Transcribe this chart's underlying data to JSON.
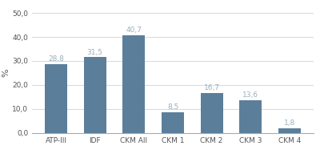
{
  "categories": [
    "ATP-III",
    "IDF",
    "CKM All",
    "CKM 1",
    "CKM 2",
    "CKM 3",
    "CKM 4"
  ],
  "values": [
    28.8,
    31.5,
    40.7,
    8.5,
    16.7,
    13.6,
    1.8
  ],
  "bar_color": "#5b7f9b",
  "ylabel": "%",
  "ylim": [
    0,
    50
  ],
  "yticks": [
    0.0,
    10.0,
    20.0,
    30.0,
    40.0,
    50.0
  ],
  "label_color": "#9ab0be",
  "label_fontsize": 6.5,
  "tick_fontsize": 6.5,
  "ylabel_fontsize": 8.0,
  "background_color": "#ffffff",
  "grid_color": "#d8d8d8",
  "bar_width": 0.58
}
